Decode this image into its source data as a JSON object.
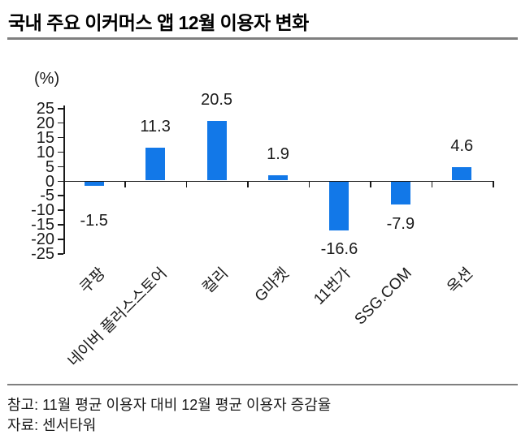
{
  "title": "국내 주요 이커머스 앱 12월 이용자 변화",
  "chart_data": {
    "type": "bar",
    "title": "국내 주요 이커머스 앱 12월 이용자 변화",
    "unit_label": "(%)",
    "categories": [
      "쿠팡",
      "네이버 플러스스토어",
      "컬리",
      "G마켓",
      "11번가",
      "SSG.COM",
      "옥션"
    ],
    "values": [
      -1.5,
      11.3,
      20.5,
      1.9,
      -16.6,
      -7.9,
      4.6
    ],
    "data_labels": [
      "-1.5",
      "11.3",
      "20.5",
      "1.9",
      "-16.6",
      "-7.9",
      "4.6"
    ],
    "yticks": [
      25,
      20,
      15,
      10,
      5,
      0,
      -5,
      -10,
      -15,
      -20,
      -25
    ],
    "ylim": [
      -25,
      25
    ],
    "xlabel": "",
    "ylabel": "(%)",
    "grid": false,
    "legend": false,
    "bar_color": "#1278e8",
    "axis_color": "#1a1a1a"
  },
  "footer": {
    "note": "참고: 11월 평균 이용자 대비 12월 평균 이용자 증감율",
    "source": "자료: 센서타워"
  }
}
